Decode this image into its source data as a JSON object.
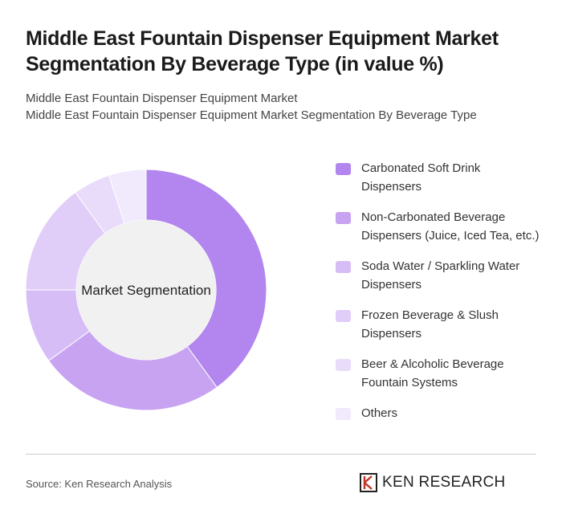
{
  "chart_data": {
    "type": "pie",
    "title": "Middle East Fountain Dispenser Equipment Market Segmentation By Beverage Type (in value %)",
    "subtitle": [
      "Middle East Fountain Dispenser Equipment Market",
      "Middle East Fountain Dispenser Equipment Market Segmentation By Beverage Type"
    ],
    "center_label": "Market Segmentation",
    "categories": [
      "Carbonated Soft Drink Dispensers",
      "Non-Carbonated Beverage Dispensers (Juice, Iced Tea, etc.)",
      "Soda Water / Sparkling Water Dispensers",
      "Frozen Beverage & Slush Dispensers",
      "Beer & Alcoholic Beverage Fountain Systems",
      "Others"
    ],
    "values": [
      40,
      25,
      10,
      15,
      5,
      5
    ],
    "colors": [
      "#b286ee",
      "#c7a3f2",
      "#d7bdf6",
      "#e0cdf8",
      "#e9dcfa",
      "#f1e9fc"
    ],
    "source": "Source: Ken Research Analysis",
    "logo": "KEN RESEARCH"
  }
}
